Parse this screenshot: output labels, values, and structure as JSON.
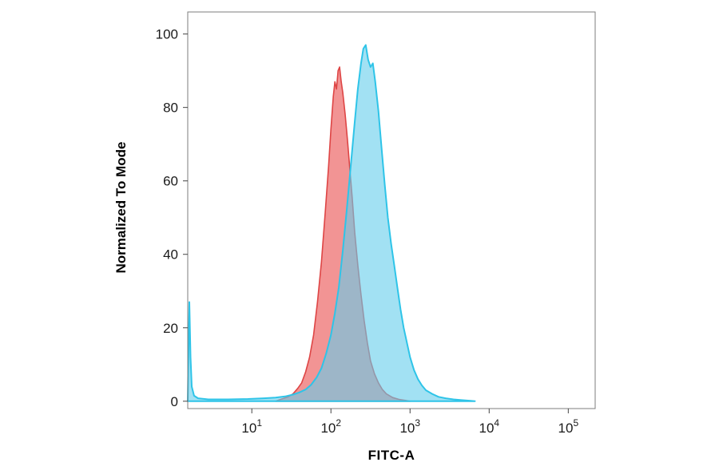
{
  "chart_data": {
    "type": "area",
    "subtype": "flow-cytometry-histogram",
    "title": "",
    "xlabel": "FITC-A",
    "ylabel": "Normalized To Mode",
    "grid": false,
    "legend": null,
    "x_axis": {
      "scale": "log10",
      "min_exp": 0.19,
      "max_exp": 5.34,
      "tick_base": "10",
      "tick_exps": [
        1,
        2,
        3,
        4,
        5
      ]
    },
    "y_axis": {
      "min": -2,
      "max": 106,
      "ticks": [
        0,
        20,
        40,
        60,
        80,
        100
      ]
    },
    "frame_color": "#7d7d7d",
    "series": [
      {
        "name": "red",
        "fill": "rgba(235,90,90,0.65)",
        "stroke": "#de4545",
        "stroke_width": 1.6,
        "points": [
          [
            1.3,
            0
          ],
          [
            1.38,
            0.6
          ],
          [
            1.46,
            1.2
          ],
          [
            1.52,
            2
          ],
          [
            1.58,
            3.5
          ],
          [
            1.63,
            5
          ],
          [
            1.68,
            8
          ],
          [
            1.73,
            12
          ],
          [
            1.78,
            18
          ],
          [
            1.83,
            27
          ],
          [
            1.88,
            38
          ],
          [
            1.93,
            52
          ],
          [
            1.97,
            64
          ],
          [
            2.0,
            74
          ],
          [
            2.03,
            83
          ],
          [
            2.05,
            87
          ],
          [
            2.07,
            85
          ],
          [
            2.09,
            90
          ],
          [
            2.11,
            91
          ],
          [
            2.13,
            87
          ],
          [
            2.15,
            84
          ],
          [
            2.18,
            78
          ],
          [
            2.21,
            71
          ],
          [
            2.24,
            63
          ],
          [
            2.27,
            55
          ],
          [
            2.3,
            46
          ],
          [
            2.34,
            37
          ],
          [
            2.38,
            29
          ],
          [
            2.42,
            22
          ],
          [
            2.46,
            16
          ],
          [
            2.5,
            11
          ],
          [
            2.55,
            7.5
          ],
          [
            2.6,
            5
          ],
          [
            2.65,
            3.2
          ],
          [
            2.7,
            2
          ],
          [
            2.78,
            1
          ],
          [
            2.86,
            0.5
          ],
          [
            2.95,
            0.2
          ],
          [
            3.0,
            0
          ]
        ]
      },
      {
        "name": "cyan",
        "fill": "rgba(100,205,235,0.60)",
        "stroke": "#2ec4e8",
        "stroke_width": 2,
        "points": [
          [
            0.19,
            0
          ],
          [
            0.2,
            14
          ],
          [
            0.21,
            27
          ],
          [
            0.225,
            12
          ],
          [
            0.24,
            4
          ],
          [
            0.27,
            1.5
          ],
          [
            0.32,
            0.8
          ],
          [
            0.45,
            0.5
          ],
          [
            0.7,
            0.5
          ],
          [
            0.95,
            0.6
          ],
          [
            1.15,
            0.8
          ],
          [
            1.3,
            1
          ],
          [
            1.42,
            1.3
          ],
          [
            1.52,
            1.8
          ],
          [
            1.6,
            2.4
          ],
          [
            1.68,
            3.2
          ],
          [
            1.75,
            4.5
          ],
          [
            1.82,
            6.5
          ],
          [
            1.88,
            9
          ],
          [
            1.94,
            13
          ],
          [
            2.0,
            18
          ],
          [
            2.05,
            24
          ],
          [
            2.1,
            31
          ],
          [
            2.15,
            41
          ],
          [
            2.2,
            52
          ],
          [
            2.25,
            64
          ],
          [
            2.3,
            76
          ],
          [
            2.34,
            85
          ],
          [
            2.38,
            92
          ],
          [
            2.41,
            96
          ],
          [
            2.44,
            97
          ],
          [
            2.47,
            93
          ],
          [
            2.5,
            91
          ],
          [
            2.53,
            92
          ],
          [
            2.56,
            87
          ],
          [
            2.6,
            79
          ],
          [
            2.64,
            69
          ],
          [
            2.68,
            59
          ],
          [
            2.72,
            50
          ],
          [
            2.76,
            43
          ],
          [
            2.8,
            37
          ],
          [
            2.84,
            31
          ],
          [
            2.88,
            25
          ],
          [
            2.92,
            20
          ],
          [
            2.96,
            16
          ],
          [
            3.0,
            12
          ],
          [
            3.05,
            8.5
          ],
          [
            3.1,
            6
          ],
          [
            3.15,
            4.3
          ],
          [
            3.2,
            3
          ],
          [
            3.28,
            2
          ],
          [
            3.36,
            1.2
          ],
          [
            3.45,
            0.8
          ],
          [
            3.55,
            0.5
          ],
          [
            3.65,
            0.3
          ],
          [
            3.75,
            0.15
          ],
          [
            3.82,
            0
          ]
        ]
      }
    ]
  }
}
